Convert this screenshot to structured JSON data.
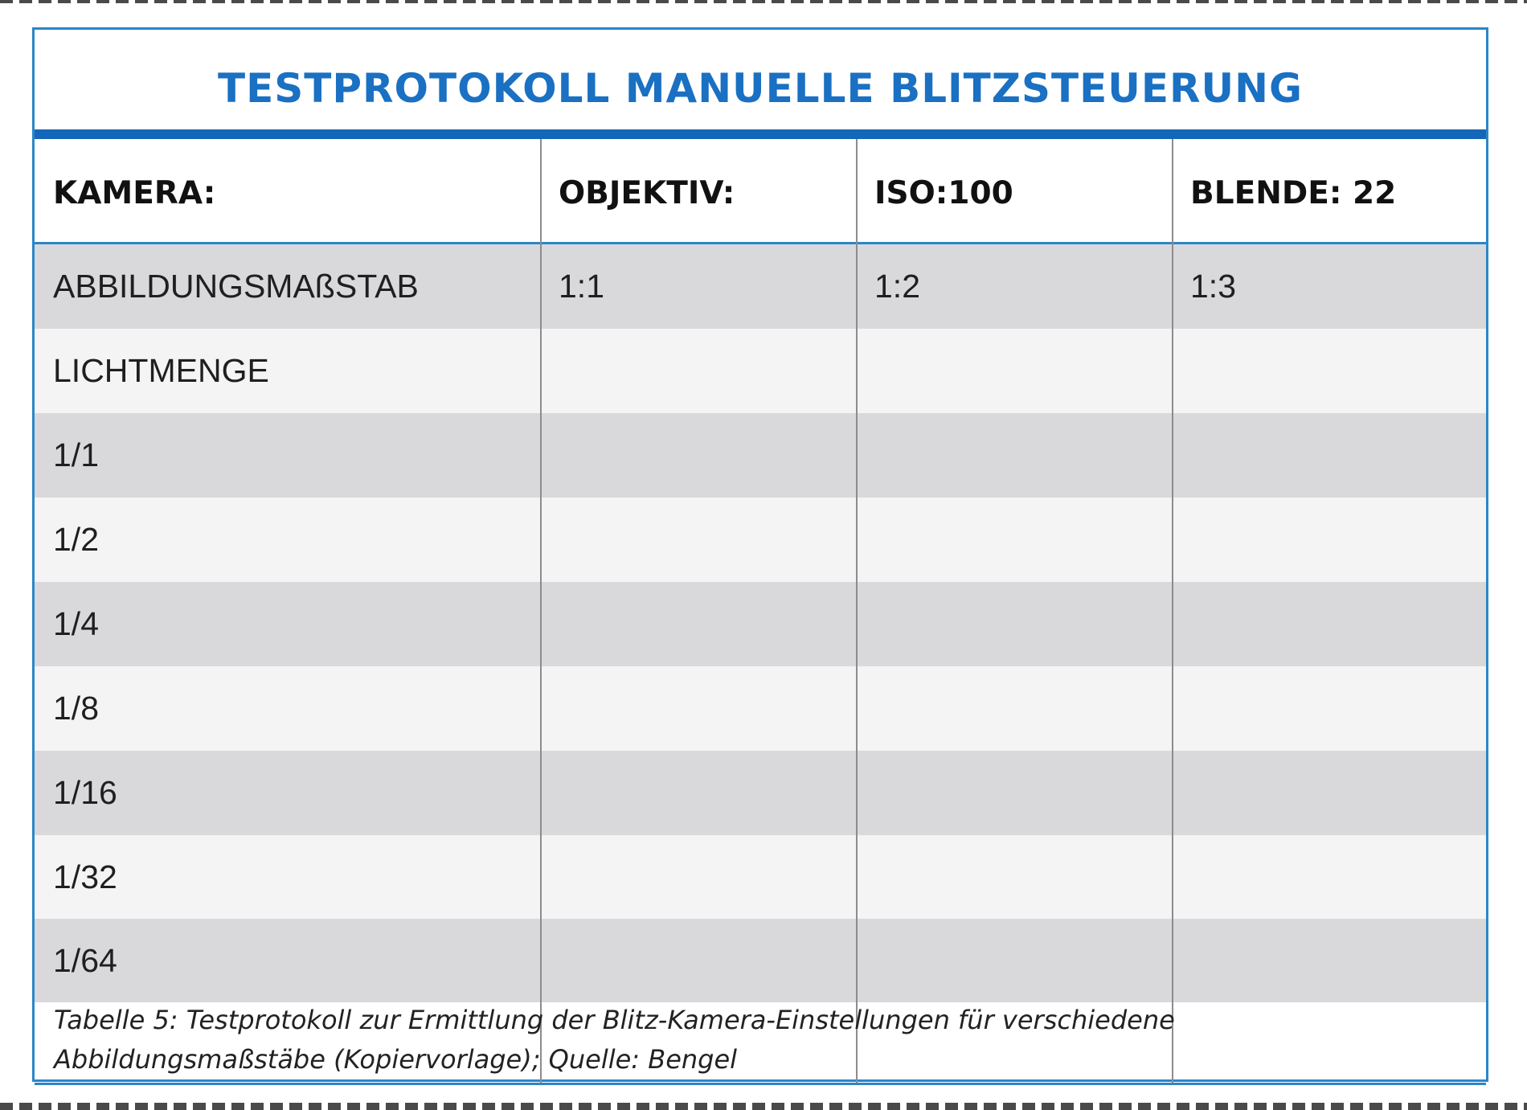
{
  "title": "TESTPROTOKOLL MANUELLE BLITZSTEUERUNG",
  "header": [
    "KAMERA:",
    "OBJEKTIV:",
    "ISO:100",
    "BLENDE: 22"
  ],
  "rows": [
    [
      "ABBILDUNGSMAßSTAB",
      "1:1",
      "1:2",
      "1:3"
    ],
    [
      "LICHTMENGE",
      "",
      "",
      ""
    ],
    [
      "1/1",
      "",
      "",
      ""
    ],
    [
      "1/2",
      "",
      "",
      ""
    ],
    [
      "1/4",
      "",
      "",
      ""
    ],
    [
      "1/8",
      "",
      "",
      ""
    ],
    [
      "1/16",
      "",
      "",
      ""
    ],
    [
      "1/32",
      "",
      "",
      ""
    ],
    [
      "1/64",
      "",
      "",
      ""
    ]
  ],
  "caption_line1": "Tabelle 5: Testprotokoll zur Ermittlung der Blitz-Kamera-Einstellungen für verschiedene",
  "caption_line2": "Abbildungsmaßstäbe (Kopiervorlage); Quelle: Bengel",
  "colors": {
    "title": "#1a70c2",
    "border": "#2b86c9",
    "title_rule": "#1467b8",
    "row_dark": "#d9d9db",
    "row_light": "#f4f4f5"
  }
}
